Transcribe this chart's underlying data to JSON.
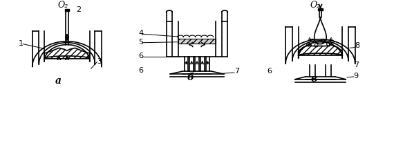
{
  "title": "",
  "bg_color": "#ffffff",
  "labels": {
    "O2_a": "O₂",
    "O2_v": "O₂",
    "num1": "1",
    "num2": "2",
    "num3": "3",
    "num4": "4",
    "num5": "5",
    "num6": "6",
    "num7": "7",
    "num8": "8",
    "num9": "9",
    "letter_a": "а",
    "letter_b": "б",
    "letter_v": "в"
  },
  "line_color": "#000000",
  "figsize": [
    5.7,
    2.17
  ],
  "dpi": 100
}
